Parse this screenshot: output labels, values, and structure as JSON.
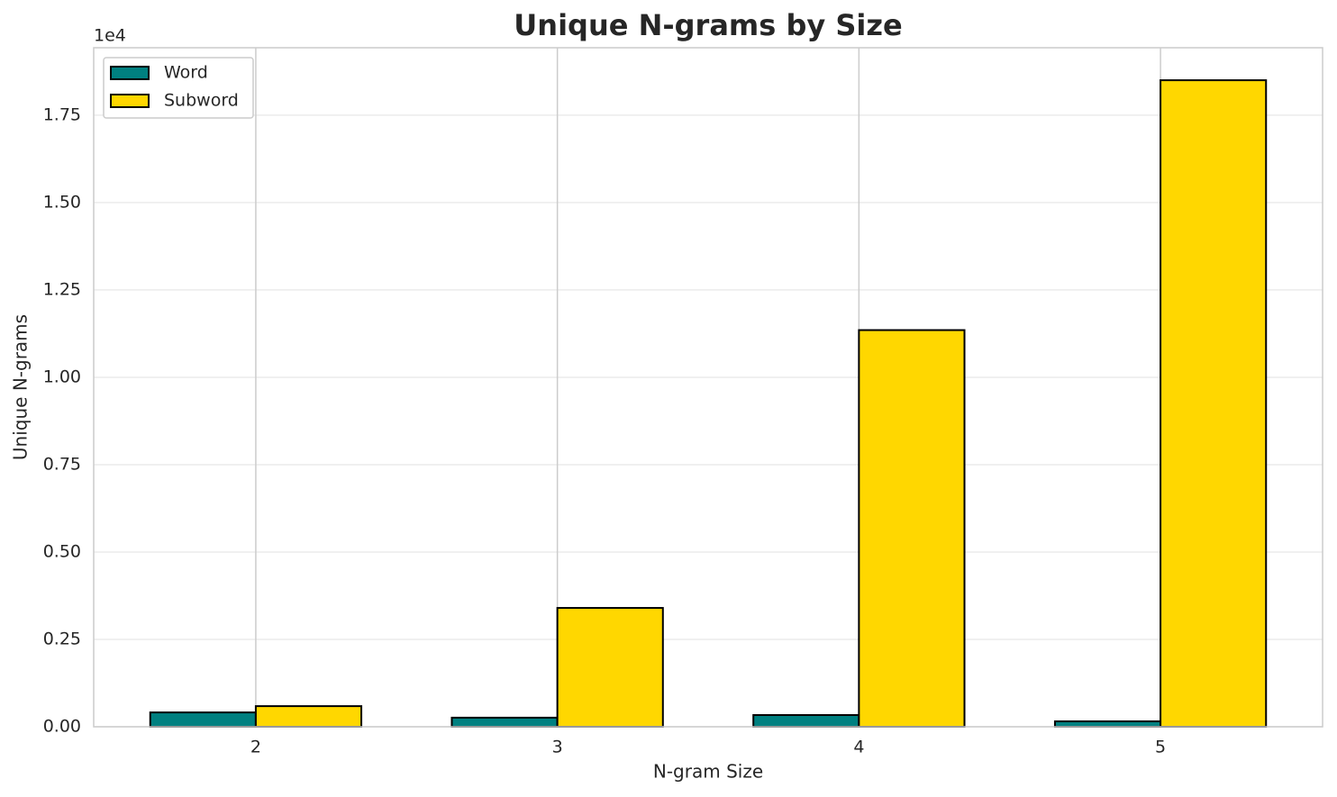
{
  "chart_data": {
    "type": "bar",
    "title": "Unique N-grams by Size",
    "x_label": "N-gram Size",
    "y_label": "Unique N-grams",
    "offset_label": "1e4",
    "categories": [
      "2",
      "3",
      "4",
      "5"
    ],
    "series": [
      {
        "name": "Word",
        "color": "#008080",
        "values": [
          410,
          260,
          335,
          155
        ]
      },
      {
        "name": "Subword",
        "color": "#ffd700",
        "values": [
          590,
          3400,
          11350,
          18500
        ]
      }
    ],
    "ylim": [
      0,
      19430
    ],
    "yticks": [
      {
        "value": 0,
        "label": "0.00"
      },
      {
        "value": 2500,
        "label": "0.25"
      },
      {
        "value": 5000,
        "label": "0.50"
      },
      {
        "value": 7500,
        "label": "0.75"
      },
      {
        "value": 10000,
        "label": "1.00"
      },
      {
        "value": 12500,
        "label": "1.25"
      },
      {
        "value": 15000,
        "label": "1.50"
      },
      {
        "value": 17500,
        "label": "1.75"
      }
    ],
    "grid": true,
    "legend": "upper left"
  }
}
